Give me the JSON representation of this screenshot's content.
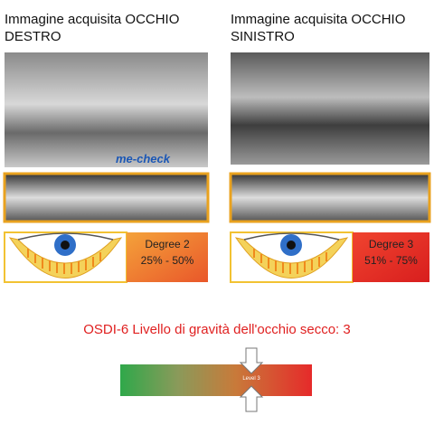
{
  "left": {
    "heading": "Immagine acquisita OCCHIO DESTRO",
    "logo": "me-check",
    "degree": "Degree 2",
    "range": "25% - 50%"
  },
  "right": {
    "heading": "Immagine acquisita OCCHIO SINISTRO",
    "degree": "Degree 3",
    "range": "51% - 75%"
  },
  "osdi": {
    "text": "OSDI-6 Livello di gravità dell'occhio secco: 3",
    "level_label": "Level 3"
  }
}
